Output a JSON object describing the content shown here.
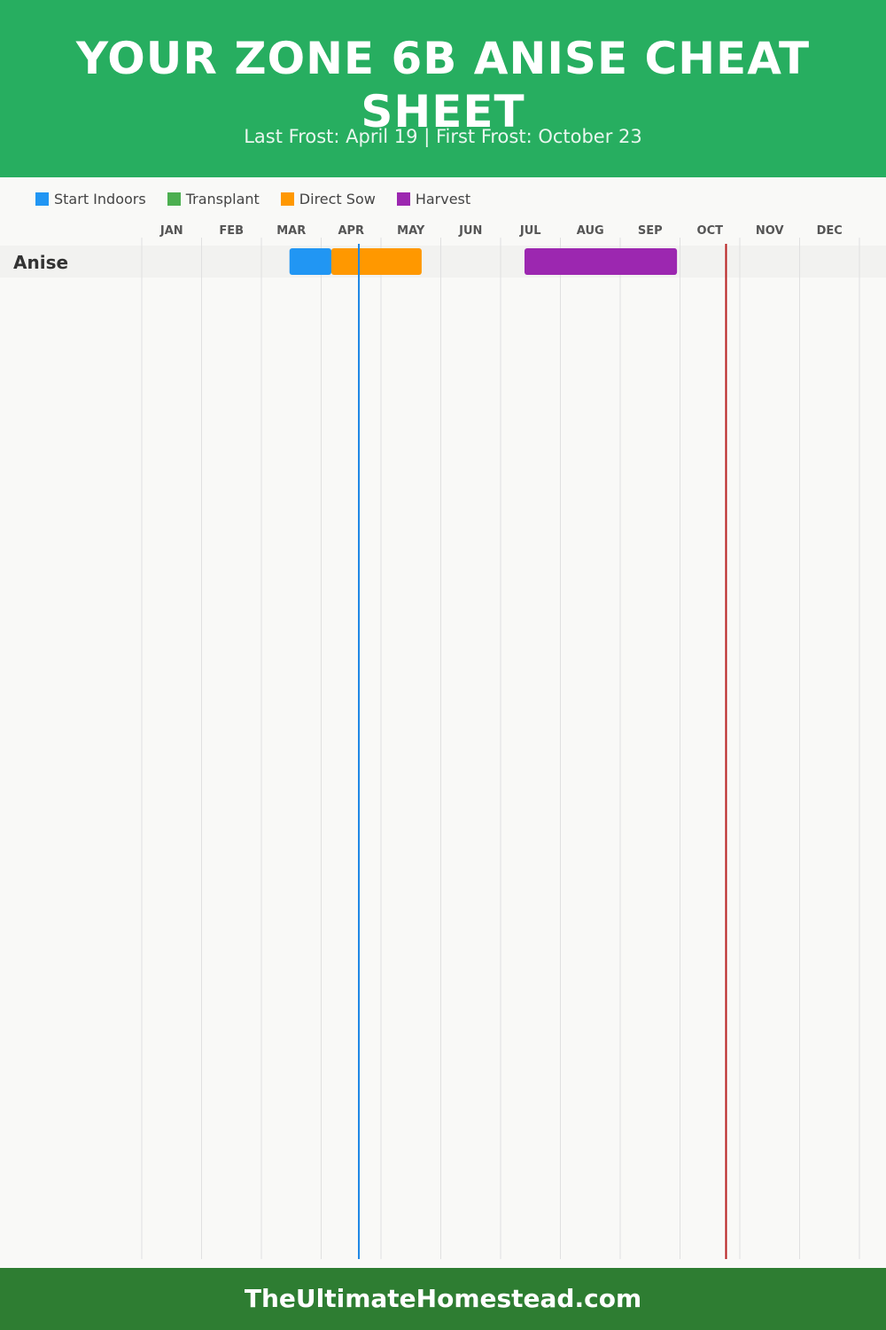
{
  "header": {
    "title": "YOUR ZONE 6B ANISE CHEAT SHEET",
    "subtitle": "Last Frost: April 19 | First Frost: October 23"
  },
  "footer": {
    "text": "TheUltimateHomestead.com"
  },
  "chart_data": {
    "type": "gantt",
    "title": "YOUR ZONE 6B ANISE CHEAT SHEET",
    "months": [
      "JAN",
      "FEB",
      "MAR",
      "APR",
      "MAY",
      "JUN",
      "JUL",
      "AUG",
      "SEP",
      "OCT",
      "NOV",
      "DEC"
    ],
    "legend": [
      {
        "name": "Start Indoors",
        "color": "#2196f3"
      },
      {
        "name": "Transplant",
        "color": "#4caf50"
      },
      {
        "name": "Direct Sow",
        "color": "#ff9800"
      },
      {
        "name": "Harvest",
        "color": "#9c27b0"
      }
    ],
    "rows": [
      {
        "crop": "Anise",
        "tasks": [
          {
            "type": "Start Indoors",
            "start": "Mar 15",
            "end": "Apr 5",
            "start_m": 2.47,
            "end_m": 3.17
          },
          {
            "type": "Direct Sow",
            "start": "Apr 5",
            "end": "May 21",
            "start_m": 3.17,
            "end_m": 4.68
          },
          {
            "type": "Harvest",
            "start": "Jul 12",
            "end": "Sep 29",
            "start_m": 6.4,
            "end_m": 8.95
          }
        ]
      }
    ],
    "markers": [
      {
        "name": "Last Frost",
        "date": "April 19",
        "m": 3.63,
        "color": "#1e88e5"
      },
      {
        "name": "First Frost",
        "date": "October 23",
        "m": 9.77,
        "color": "#b71c1c"
      }
    ]
  }
}
